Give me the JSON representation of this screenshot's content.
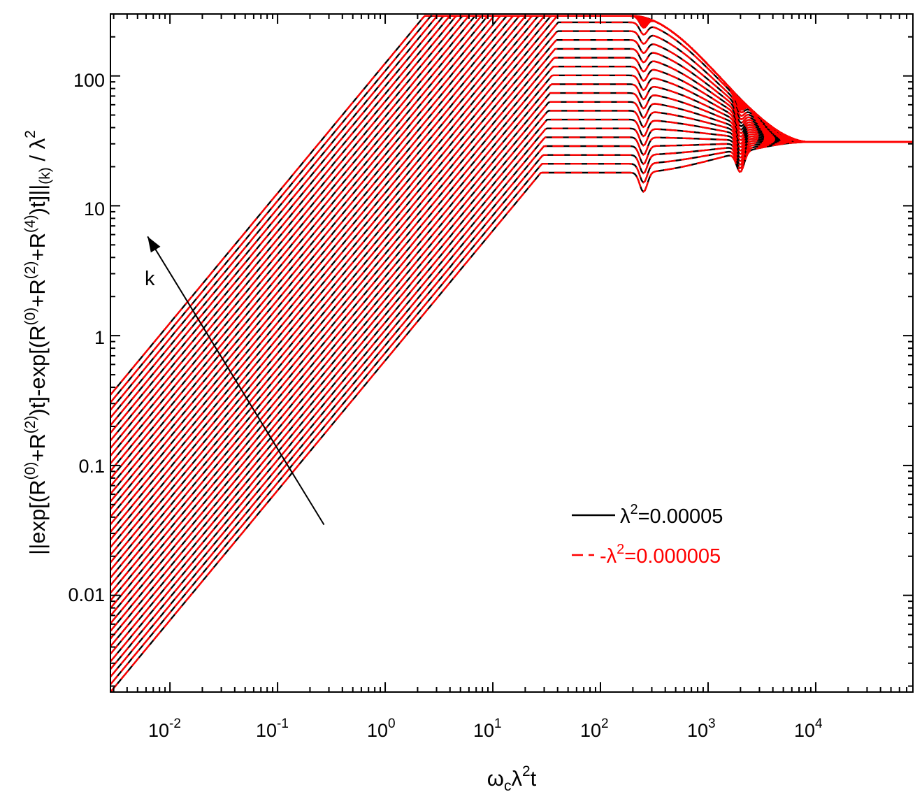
{
  "chart_data": {
    "type": "line",
    "title": "",
    "xscale": "log",
    "yscale": "log",
    "xlim": [
      0.0028,
      80000
    ],
    "ylim": [
      0.0018,
      300
    ],
    "x_ticks": [
      {
        "base": "10",
        "exp": "-2"
      },
      {
        "base": "10",
        "exp": "-1"
      },
      {
        "base": "10",
        "exp": "0"
      },
      {
        "base": "10",
        "exp": "1"
      },
      {
        "base": "10",
        "exp": "2"
      },
      {
        "base": "10",
        "exp": "3"
      },
      {
        "base": "10",
        "exp": "4"
      }
    ],
    "x_tick_values": [
      0.01,
      0.1,
      1,
      10,
      100,
      1000,
      10000
    ],
    "y_ticks": [
      "0.01",
      "0.1",
      "1",
      "10",
      "100"
    ],
    "y_tick_values": [
      0.01,
      0.1,
      1,
      10,
      100
    ],
    "xlabel": {
      "p1": "ω",
      "p1_sub": "c",
      "p2": "λ",
      "p2_sup": "2",
      "p3": "t"
    },
    "ylabel": {
      "p1": "||exp[(R",
      "s1": "(0)",
      "p2": "+R",
      "s2": "(2)",
      "p3": ")t]-exp[(R",
      "s3": "(0)",
      "p4": "+R",
      "s4": "(2)",
      "p5": "+R",
      "s5": "(4)",
      "p6": ")t]||",
      "sub": "(k)",
      "p7": " / λ",
      "s7": "2"
    },
    "annotation": {
      "label": "k",
      "from": [
        0.27,
        0.035
      ],
      "to": [
        0.0062,
        5.8
      ]
    },
    "legend": {
      "placement": "lower-right",
      "entries": [
        {
          "sym": "λ",
          "sup": "2",
          "rest": "=0.00005",
          "style": "solid",
          "color": "#000000"
        },
        {
          "prefix": "-",
          "sym": "λ",
          "sup": "2",
          "rest": "=0.000005",
          "style": "dashed",
          "color": "#ff0000"
        }
      ]
    },
    "series_params": {
      "count": 40,
      "k_min": 1,
      "k_max": 40,
      "low_t_start_at_k1": 0.0018,
      "peak_at_k1": 18,
      "envelope_max": 290,
      "plateau": 31
    },
    "series": [
      {
        "name": "λ²=0.00005",
        "color": "#000000",
        "style": "solid",
        "bottom_curve_points": [
          [
            0.003,
            0.0018
          ],
          [
            0.01,
            0.006
          ],
          [
            0.1,
            0.045
          ],
          [
            1,
            0.6
          ],
          [
            10,
            6.5
          ],
          [
            120,
            18
          ],
          [
            250,
            13
          ],
          [
            1000,
            22
          ],
          [
            2000,
            17.5
          ],
          [
            10000,
            30
          ],
          [
            80000,
            31
          ]
        ]
      },
      {
        "name": "λ²=0.000005",
        "color": "#ff0000",
        "style": "dashed",
        "bottom_curve_points": [
          [
            0.003,
            0.0018
          ],
          [
            0.01,
            0.006
          ],
          [
            0.1,
            0.045
          ],
          [
            1,
            0.6
          ],
          [
            10,
            6.5
          ],
          [
            120,
            18
          ],
          [
            250,
            13
          ],
          [
            1000,
            22
          ],
          [
            2000,
            17.5
          ],
          [
            10000,
            30
          ],
          [
            80000,
            31
          ]
        ]
      }
    ]
  }
}
